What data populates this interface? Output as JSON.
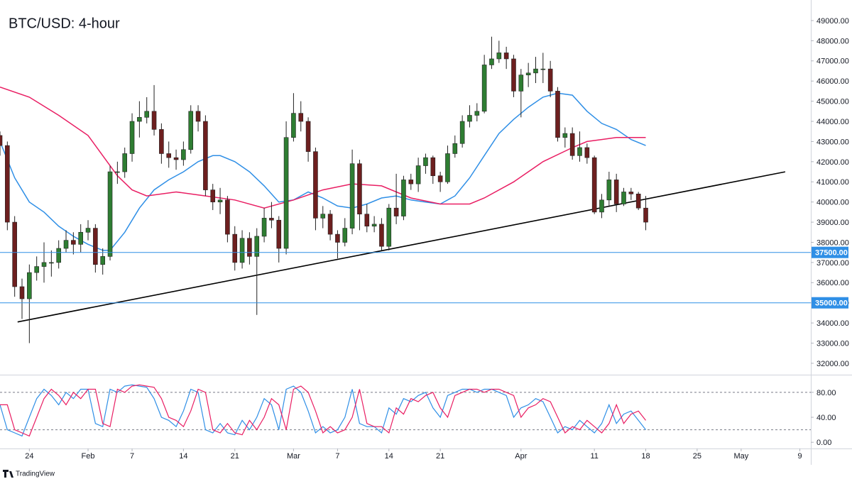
{
  "chart_data": [
    {
      "type": "candlestick",
      "title": "BTC/USD: 4-hour",
      "x": [
        20,
        21,
        22,
        23,
        24,
        25,
        26,
        27,
        28,
        29,
        30,
        31,
        32,
        33,
        34,
        35,
        36,
        37,
        38,
        39,
        40,
        41,
        42,
        43,
        44,
        45,
        46,
        47,
        48,
        49,
        50,
        51,
        52,
        53,
        54,
        55,
        56,
        57,
        58,
        59,
        60,
        61,
        62,
        63,
        64,
        65,
        66,
        67,
        68,
        69,
        70,
        71,
        72,
        73,
        74,
        75,
        76,
        77,
        78,
        79,
        80,
        81,
        82,
        83,
        84,
        85,
        86,
        87,
        88,
        89,
        90,
        91,
        92,
        93,
        94,
        95,
        96,
        97,
        98,
        99,
        100,
        101,
        102,
        103,
        104,
        105,
        106,
        107,
        108
      ],
      "open": [
        43300,
        42800,
        39000,
        35800,
        35200,
        36500,
        36800,
        37000,
        37000,
        37700,
        38100,
        37900,
        38500,
        38700,
        36900,
        37300,
        41500,
        41500,
        42400,
        44000,
        44200,
        44500,
        43600,
        42400,
        42200,
        42100,
        42600,
        44500,
        44000,
        40600,
        40000,
        40100,
        38400,
        37000,
        38200,
        37300,
        38300,
        39200,
        39100,
        37700,
        43200,
        44400,
        44000,
        42500,
        39200,
        39400,
        38400,
        38000,
        38700,
        41900,
        39400,
        38800,
        38900,
        37800,
        39700,
        39300,
        41100,
        40900,
        41800,
        42200,
        41300,
        41000,
        42400,
        42900,
        44000,
        44300,
        44500,
        46800,
        47100,
        47400,
        47100,
        45500,
        46300,
        46400,
        46600,
        46600,
        45500,
        43200,
        43400,
        42300,
        42700,
        42200,
        39500,
        40100,
        41100,
        39900,
        40500,
        40400,
        39700
      ],
      "high": [
        43500,
        43000,
        39300,
        36200,
        36900,
        37300,
        38000,
        37600,
        38100,
        38600,
        38500,
        38900,
        39100,
        38900,
        37700,
        41800,
        42000,
        42700,
        44400,
        45000,
        45200,
        45800,
        43900,
        43000,
        42600,
        43000,
        44800,
        44800,
        44300,
        40900,
        40700,
        40300,
        38800,
        38600,
        38500,
        38700,
        39700,
        40000,
        39300,
        44000,
        45400,
        45000,
        44200,
        42700,
        39800,
        39600,
        38600,
        39200,
        42600,
        42100,
        39900,
        39300,
        39200,
        39900,
        41400,
        41300,
        41400,
        42200,
        42400,
        42300,
        41500,
        42800,
        43300,
        44300,
        44800,
        44900,
        47300,
        48200,
        48000,
        47700,
        47300,
        46600,
        46900,
        47200,
        47400,
        47000,
        45700,
        43700,
        43700,
        43500,
        42900,
        42300,
        40400,
        41500,
        41400,
        40700,
        40700,
        40500,
        40300
      ],
      "low": [
        42300,
        38600,
        35300,
        34200,
        33000,
        36100,
        36000,
        36300,
        36700,
        37500,
        37400,
        37500,
        38100,
        36500,
        36400,
        37100,
        40900,
        41200,
        42000,
        43200,
        43900,
        43300,
        41900,
        41700,
        41600,
        41800,
        42400,
        43500,
        40300,
        39600,
        39400,
        38000,
        36600,
        36700,
        36900,
        34400,
        38000,
        38700,
        37000,
        37400,
        43000,
        43500,
        42000,
        38600,
        38700,
        38100,
        37200,
        37800,
        38400,
        38600,
        38500,
        38500,
        37600,
        37600,
        38900,
        39100,
        40600,
        40500,
        41400,
        40900,
        40500,
        40900,
        42200,
        42700,
        43700,
        44000,
        44400,
        46600,
        46900,
        46600,
        45200,
        44200,
        45700,
        45900,
        45900,
        45200,
        43000,
        42700,
        42100,
        42000,
        41900,
        39400,
        39200,
        39800,
        39500,
        39800,
        40100,
        39600,
        38600
      ],
      "close": [
        42800,
        39000,
        35800,
        35200,
        36500,
        36800,
        37000,
        37000,
        37700,
        38100,
        37900,
        38500,
        38700,
        36900,
        37300,
        41500,
        41500,
        42400,
        44000,
        44200,
        44500,
        43600,
        42400,
        42200,
        42100,
        42600,
        44500,
        44000,
        40600,
        40000,
        40100,
        38400,
        37000,
        38200,
        37300,
        38300,
        39200,
        39100,
        37700,
        43200,
        44400,
        44000,
        42500,
        39200,
        39400,
        38400,
        38000,
        38700,
        41900,
        39400,
        38800,
        38900,
        37800,
        39700,
        39300,
        41100,
        40900,
        41800,
        42200,
        41300,
        41000,
        42400,
        42900,
        44000,
        44300,
        44500,
        46800,
        47100,
        47400,
        47100,
        45500,
        46300,
        46400,
        46600,
        46600,
        45500,
        43200,
        43400,
        42300,
        42700,
        42200,
        39500,
        40100,
        41100,
        39900,
        40500,
        40400,
        39700,
        39000
      ],
      "up_color": "#2e7d32",
      "down_color": "#6d1f1f",
      "wick_color": "#222222",
      "series": [
        {
          "color": "#2f8fe6",
          "x": [
            20,
            22,
            24,
            26,
            28,
            30,
            32,
            34,
            35,
            37,
            39,
            41,
            43,
            45,
            47,
            49,
            50,
            52,
            54,
            56,
            58,
            60,
            62,
            64,
            66,
            68,
            70,
            72,
            74,
            76,
            78,
            80,
            82,
            84,
            86,
            88,
            90,
            92,
            94,
            96,
            98,
            100,
            102,
            104,
            106,
            108
          ],
          "values": [
            43000,
            41200,
            40000,
            39500,
            38800,
            38300,
            37900,
            37600,
            37600,
            38500,
            39700,
            40600,
            41100,
            41500,
            42000,
            42300,
            42300,
            42000,
            41500,
            40800,
            40000,
            40100,
            40500,
            40200,
            39800,
            39700,
            39900,
            40200,
            40300,
            40100,
            40000,
            39900,
            40300,
            41200,
            42300,
            43400,
            44100,
            44700,
            45200,
            45400,
            45300,
            44500,
            43900,
            43600,
            43100,
            42800
          ]
        },
        {
          "color": "#e91e63",
          "x": [
            20,
            24,
            28,
            32,
            34,
            36,
            38,
            40,
            44,
            48,
            52,
            56,
            60,
            64,
            68,
            72,
            76,
            80,
            84,
            86,
            90,
            94,
            98,
            100,
            102,
            104,
            108
          ],
          "values": [
            45700,
            45200,
            44300,
            43300,
            42300,
            41300,
            40600,
            40300,
            40500,
            40300,
            40100,
            39700,
            40100,
            40600,
            40900,
            40800,
            40200,
            39900,
            39900,
            40200,
            41000,
            42000,
            42700,
            43000,
            43100,
            43200,
            43200
          ]
        },
        {
          "color": "#000000",
          "x": [
            22.4,
            127
          ],
          "values": [
            34050,
            41500
          ]
        }
      ],
      "levels": [
        37500,
        35000
      ],
      "level_labels": [
        "37500.00",
        "35000.00"
      ],
      "level_color": "#2f8fe6",
      "xlim": [
        20,
        130.3
      ],
      "ylim": [
        31470,
        50020
      ],
      "xticks": [
        {
          "value": 24,
          "label": "24"
        },
        {
          "value": 32,
          "label": "Feb"
        },
        {
          "value": 38,
          "label": "7"
        },
        {
          "value": 45,
          "label": "14"
        },
        {
          "value": 52,
          "label": "21"
        },
        {
          "value": 60,
          "label": "Mar"
        },
        {
          "value": 66,
          "label": "7"
        },
        {
          "value": 73,
          "label": "14"
        },
        {
          "value": 80,
          "label": "21"
        },
        {
          "value": 91,
          "label": "Apr"
        },
        {
          "value": 101,
          "label": "11"
        },
        {
          "value": 108,
          "label": "18"
        },
        {
          "value": 115,
          "label": "25"
        },
        {
          "value": 121,
          "label": "May"
        },
        {
          "value": 129,
          "label": "9"
        }
      ],
      "yticks": [
        {
          "value": 49000,
          "label": "49000.00"
        },
        {
          "value": 48000,
          "label": "48000.00"
        },
        {
          "value": 47000,
          "label": "47000.00"
        },
        {
          "value": 46000,
          "label": "46000.00"
        },
        {
          "value": 45000,
          "label": "45000.00"
        },
        {
          "value": 44000,
          "label": "44000.00"
        },
        {
          "value": 43000,
          "label": "43000.00"
        },
        {
          "value": 42000,
          "label": "42000.00"
        },
        {
          "value": 41000,
          "label": "41000.00"
        },
        {
          "value": 40000,
          "label": "40000.00"
        },
        {
          "value": 39000,
          "label": "39000.00"
        },
        {
          "value": 38000,
          "label": "38000.00"
        },
        {
          "value": 37000,
          "label": "37000.00"
        },
        {
          "value": 36000,
          "label": "36000.00"
        },
        {
          "value": 35000,
          "label": "35000.00"
        },
        {
          "value": 34000,
          "label": "34000.00"
        },
        {
          "value": 33000,
          "label": "33000.00"
        },
        {
          "value": 32000,
          "label": "32000.00"
        }
      ]
    },
    {
      "type": "line",
      "x": [
        20,
        21,
        22,
        23,
        24,
        25,
        26,
        27,
        28,
        29,
        30,
        31,
        32,
        33,
        34,
        35,
        36,
        37,
        38,
        39,
        40,
        41,
        42,
        43,
        44,
        45,
        46,
        47,
        48,
        49,
        50,
        51,
        52,
        53,
        54,
        55,
        56,
        57,
        58,
        59,
        60,
        61,
        62,
        63,
        64,
        65,
        66,
        67,
        68,
        69,
        70,
        71,
        72,
        73,
        74,
        75,
        76,
        77,
        78,
        79,
        80,
        81,
        82,
        83,
        84,
        85,
        86,
        87,
        88,
        89,
        90,
        91,
        92,
        93,
        94,
        95,
        96,
        97,
        98,
        99,
        100,
        101,
        102,
        103,
        104,
        105,
        106,
        107,
        108
      ],
      "series": [
        {
          "color": "#2f8fe6",
          "values": [
            60,
            20,
            15,
            10,
            40,
            70,
            85,
            75,
            60,
            80,
            70,
            85,
            85,
            30,
            25,
            85,
            80,
            90,
            92,
            90,
            88,
            70,
            40,
            35,
            25,
            50,
            85,
            80,
            20,
            15,
            30,
            15,
            12,
            35,
            20,
            40,
            70,
            60,
            20,
            85,
            90,
            80,
            50,
            15,
            25,
            15,
            20,
            40,
            85,
            30,
            25,
            25,
            15,
            55,
            45,
            70,
            65,
            75,
            80,
            55,
            40,
            75,
            80,
            85,
            85,
            80,
            85,
            85,
            80,
            75,
            40,
            55,
            60,
            70,
            65,
            40,
            15,
            25,
            20,
            35,
            25,
            15,
            30,
            60,
            30,
            45,
            50,
            35,
            20
          ]
        },
        {
          "color": "#e91e63",
          "values": [
            60,
            60,
            20,
            15,
            10,
            40,
            70,
            85,
            75,
            60,
            80,
            70,
            85,
            85,
            30,
            25,
            85,
            80,
            90,
            92,
            90,
            88,
            70,
            40,
            35,
            25,
            50,
            85,
            80,
            20,
            15,
            30,
            15,
            12,
            35,
            20,
            40,
            70,
            60,
            20,
            85,
            90,
            80,
            50,
            15,
            25,
            15,
            20,
            40,
            85,
            30,
            25,
            25,
            15,
            55,
            45,
            70,
            65,
            75,
            80,
            55,
            40,
            75,
            80,
            85,
            85,
            80,
            85,
            85,
            80,
            75,
            40,
            55,
            60,
            70,
            65,
            40,
            15,
            25,
            20,
            35,
            25,
            15,
            30,
            60,
            30,
            45,
            50,
            35
          ]
        }
      ],
      "levels": [
        80,
        20
      ],
      "xlim": [
        20,
        130.3
      ],
      "ylim": [
        -10,
        106
      ],
      "yticks": [
        {
          "value": 80,
          "label": "80.00"
        },
        {
          "value": 40,
          "label": "40.00"
        },
        {
          "value": 0,
          "label": "0.00"
        }
      ]
    }
  ],
  "footer": "TradingView"
}
